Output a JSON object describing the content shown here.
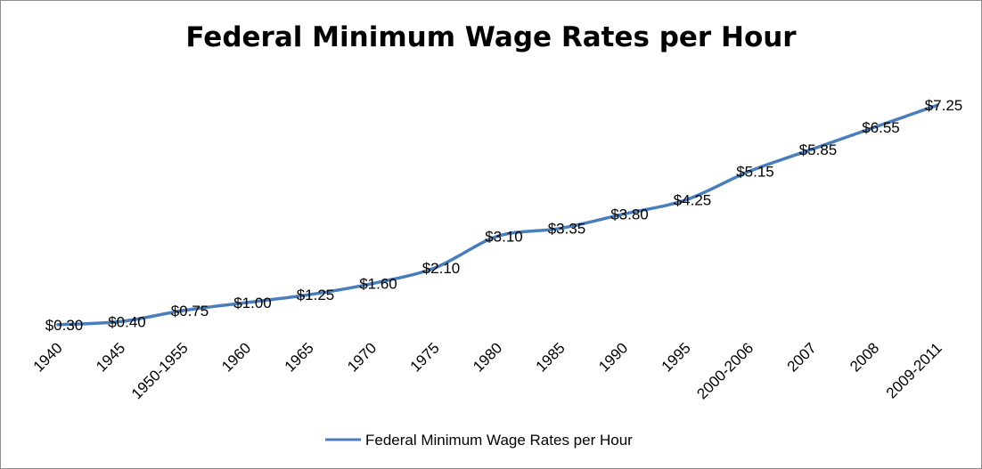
{
  "chart_data": {
    "type": "line",
    "title": "Federal Minimum Wage Rates per Hour",
    "xlabel": "",
    "ylabel": "",
    "ylim": [
      0,
      7.5
    ],
    "grid": false,
    "legend_position": "bottom",
    "categories": [
      "1940",
      "1945",
      "1950-1955",
      "1960",
      "1965",
      "1970",
      "1975",
      "1980",
      "1985",
      "1990",
      "1995",
      "2000-2006",
      "2007",
      "2008",
      "2009-2011"
    ],
    "series": [
      {
        "name": "Federal Minimum Wage Rates per Hour",
        "color": "#4a7ebb",
        "values": [
          0.3,
          0.4,
          0.75,
          1.0,
          1.25,
          1.6,
          2.1,
          3.1,
          3.35,
          3.8,
          4.25,
          5.15,
          5.85,
          6.55,
          7.25
        ],
        "data_labels": [
          "$0.30",
          "$0.40",
          "$0.75",
          "$1.00",
          "$1.25",
          "$1.60",
          "$2.10",
          "$3.10",
          "$3.35",
          "$3.80",
          "$4.25",
          "$5.15",
          "$5.85",
          "$6.55",
          "$7.25"
        ]
      }
    ]
  }
}
